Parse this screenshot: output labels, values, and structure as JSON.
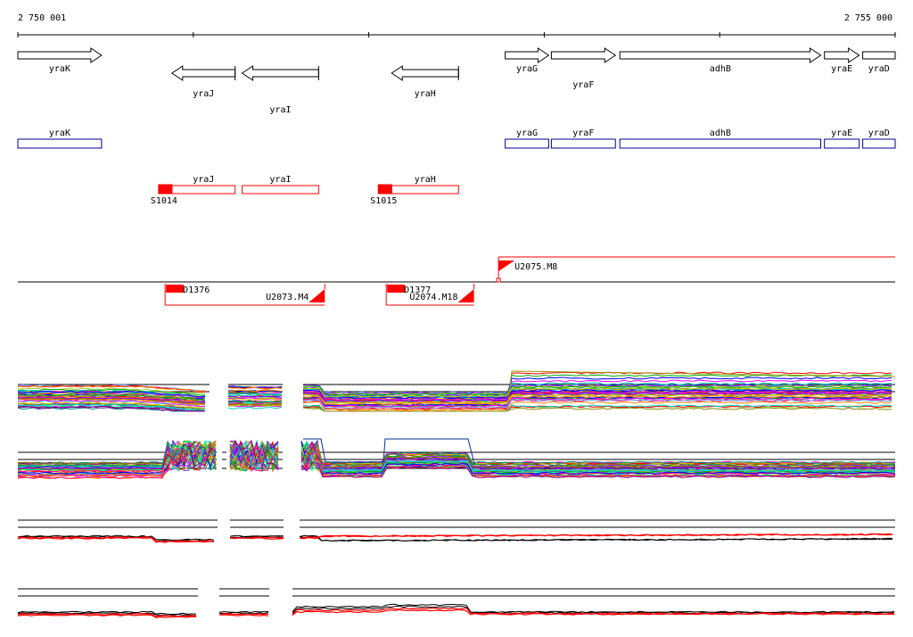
{
  "ruler": {
    "start_label": "2 750 001",
    "end_label": "2 755 000",
    "start_coord": 2750001,
    "end_coord": 2755000
  },
  "colors": {
    "gene_outline": "#000000",
    "cds_box": "#00009a",
    "promoter": "#ff0000",
    "signal_black": "#000000",
    "signal_red": "#ff0000"
  },
  "genes": [
    {
      "name": "yraK",
      "strand": "+",
      "start": 2750001,
      "end": 2750478
    },
    {
      "name": "yraJ",
      "strand": "-",
      "start": 2750879,
      "end": 2751239
    },
    {
      "name": "yraI",
      "strand": "-",
      "start": 2751279,
      "end": 2751715
    },
    {
      "name": "yraH",
      "strand": "-",
      "start": 2752131,
      "end": 2752512
    },
    {
      "name": "yraG",
      "strand": "+",
      "start": 2752778,
      "end": 2753026
    },
    {
      "name": "yraF",
      "strand": "+",
      "start": 2753041,
      "end": 2753406
    },
    {
      "name": "adhB",
      "strand": "+",
      "start": 2753431,
      "end": 2754576
    },
    {
      "name": "yraE",
      "strand": "+",
      "start": 2754597,
      "end": 2754795
    },
    {
      "name": "yraD",
      "strand": "+",
      "start": 2754815,
      "end": 2755000
    }
  ],
  "operons": [
    {
      "name": "yraJ",
      "start": 2750879,
      "end": 2751239,
      "promoter_label": "S1014"
    },
    {
      "name": "yraI",
      "start": 2751279,
      "end": 2751715,
      "promoter_label": ""
    },
    {
      "name": "yraH",
      "start": 2752131,
      "end": 2752512,
      "promoter_label": "S1015"
    }
  ],
  "transcripts": [
    {
      "label": "U2075.M8",
      "strand": "+",
      "start": 2752740,
      "end": 2755000,
      "tss_label": ""
    },
    {
      "label": "U2073.M4",
      "strand": "-",
      "start": 2750840,
      "end": 2751750,
      "tss_label": "D1376"
    },
    {
      "label": "U2074.M18",
      "strand": "-",
      "start": 2752100,
      "end": 2752600,
      "tss_label": "D1377"
    }
  ],
  "tracks": [
    {
      "name": "track-1",
      "kind": "multicolor"
    },
    {
      "name": "track-2",
      "kind": "multicolor"
    },
    {
      "name": "track-3",
      "kind": "red-black"
    },
    {
      "name": "track-4",
      "kind": "red-black"
    }
  ]
}
